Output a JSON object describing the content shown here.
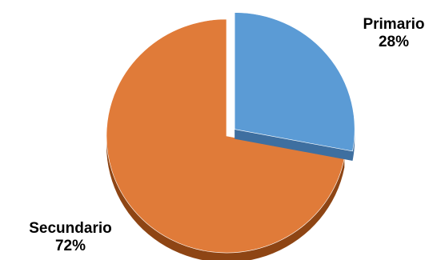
{
  "chart_data": {
    "type": "pie",
    "style": "3d-exploded",
    "start_angle": "top",
    "direction": "clockwise",
    "slices": [
      {
        "label": "Primario",
        "value": 28,
        "value_label": "28%",
        "color": "#5B9BD5",
        "side_color": "#3E6FA0",
        "exploded": true
      },
      {
        "label": "Secundario",
        "value": 72,
        "value_label": "72%",
        "color": "#E07B39",
        "side_color": "#8E4514",
        "exploded": false
      }
    ]
  }
}
